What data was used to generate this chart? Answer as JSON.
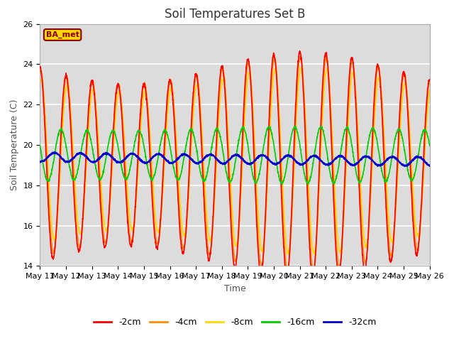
{
  "title": "Soil Temperatures Set B",
  "xlabel": "Time",
  "ylabel": "Soil Temperature (C)",
  "ylim": [
    14,
    26
  ],
  "yticks": [
    14,
    16,
    18,
    20,
    22,
    24,
    26
  ],
  "n_days": 15,
  "x_tick_labels": [
    "May 11",
    "May 12",
    "May 13",
    "May 14",
    "May 15",
    "May 16",
    "May 17",
    "May 18",
    "May 19",
    "May 20",
    "May 21",
    "May 22",
    "May 23",
    "May 24",
    "May 25",
    "May 26"
  ],
  "annotation_text": "BA_met",
  "annotation_color": "#8B0000",
  "annotation_bg": "#FFD700",
  "line_colors": {
    "-2cm": "#FF0000",
    "-4cm": "#FF8C00",
    "-8cm": "#FFD700",
    "-16cm": "#00CC00",
    "-32cm": "#0000CC"
  },
  "line_widths": {
    "-2cm": 1.2,
    "-4cm": 1.2,
    "-8cm": 1.2,
    "-16cm": 1.2,
    "-32cm": 1.5
  },
  "plot_bg_color": "#DCDCDC",
  "fig_bg_color": "#FFFFFF",
  "grid_color": "#FFFFFF",
  "title_fontsize": 12,
  "label_fontsize": 9,
  "tick_fontsize": 8
}
